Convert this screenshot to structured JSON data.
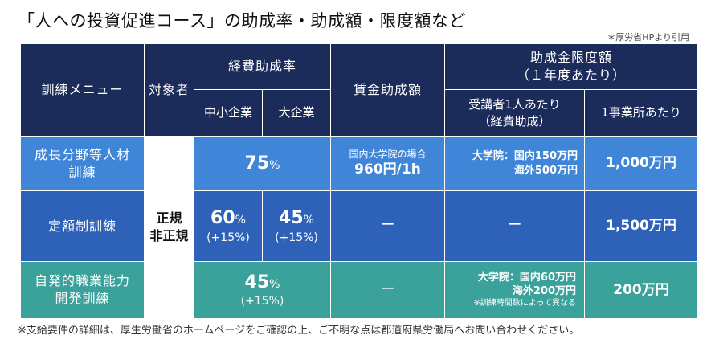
{
  "title": "「人への投資促進コース」の助成率・助成額・限度額など",
  "source_note": "＊厚労省HPより引用",
  "table": {
    "headers": {
      "menu": "訓練メニュー",
      "target": "対象者",
      "expense_rate": "経費助成率",
      "sme": "中小企業",
      "large": "大企業",
      "wage": "賃金助成額",
      "limit_line1": "助成金限度額",
      "limit_line2": "（１年度あたり）",
      "per_person_line1": "受講者1人あたり",
      "per_person_line2": "（経費助成）",
      "per_office": "1事業所あたり"
    },
    "target_cell": {
      "line1": "正規",
      "line2": "非正規"
    },
    "rows": [
      {
        "menu_line1": "成長分野等人材",
        "menu_line2": "訓練",
        "rate": "75",
        "rate_unit": "%",
        "wage_line1": "国内大学院の場合",
        "wage_line2": "960円/1h",
        "limit_line1": "大学院：国内150万円",
        "limit_line2": "海外500万円",
        "per_office": "1,000万円"
      },
      {
        "menu_line1": "定額制訓練",
        "sme_rate": "60",
        "sme_unit": "%",
        "sme_extra": "(+15%)",
        "large_rate": "45",
        "large_unit": "%",
        "large_extra": "(+15%)",
        "wage": "ー",
        "limit": "ー",
        "per_office": "1,500万円"
      },
      {
        "menu_line1": "自発的職業能力",
        "menu_line2": "開発訓練",
        "rate": "45",
        "rate_unit": "%",
        "rate_extra": "(+15%)",
        "wage": "ー",
        "limit_line1": "大学院：国内60万円",
        "limit_line2": "海外200万円",
        "limit_note": "※訓練時間数によって異なる",
        "per_office": "200万円"
      }
    ]
  },
  "footnote": "※支給要件の詳細は、厚生労働省のホームページをご確認の上、ご不明な点は都道府県労働局へお問い合わせください。",
  "colors": {
    "header": "#1b2c5b",
    "row1": "#3f86d8",
    "row2": "#2e62b8",
    "row3": "#3aa29b"
  }
}
